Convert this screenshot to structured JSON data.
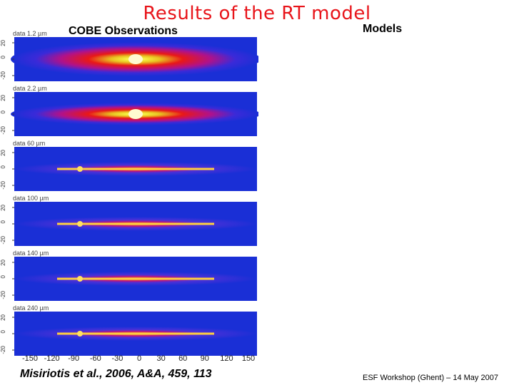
{
  "slide": {
    "title": "Results of the RT model",
    "observations_heading": "COBE Observations",
    "models_heading": "Models",
    "citation": "Misiriotis et al., 2006, A&A, 459, 113",
    "footer": "ESF Workshop (Ghent) – 14 May 2007"
  },
  "panels": [
    {
      "label": "data 1.2 µm",
      "colormap": "hot-centered"
    },
    {
      "label": "data 2.2 µm",
      "colormap": "hot-centered"
    },
    {
      "label": "data 60 µm",
      "colormap": "thin-disk"
    },
    {
      "label": "data 100 µm",
      "colormap": "thin-disk"
    },
    {
      "label": "data 140 µm",
      "colormap": "thin-disk"
    },
    {
      "label": "data 240 µm",
      "colormap": "thin-disk"
    }
  ],
  "y_ticks": [
    "20",
    "0",
    "-20"
  ],
  "x_ticks": [
    "-150",
    "-120",
    "-90",
    "-60",
    "-30",
    "0",
    "30",
    "60",
    "90",
    "120",
    "150"
  ],
  "colors": {
    "title": "#e8141a",
    "background_map": "#1a2fd6"
  }
}
